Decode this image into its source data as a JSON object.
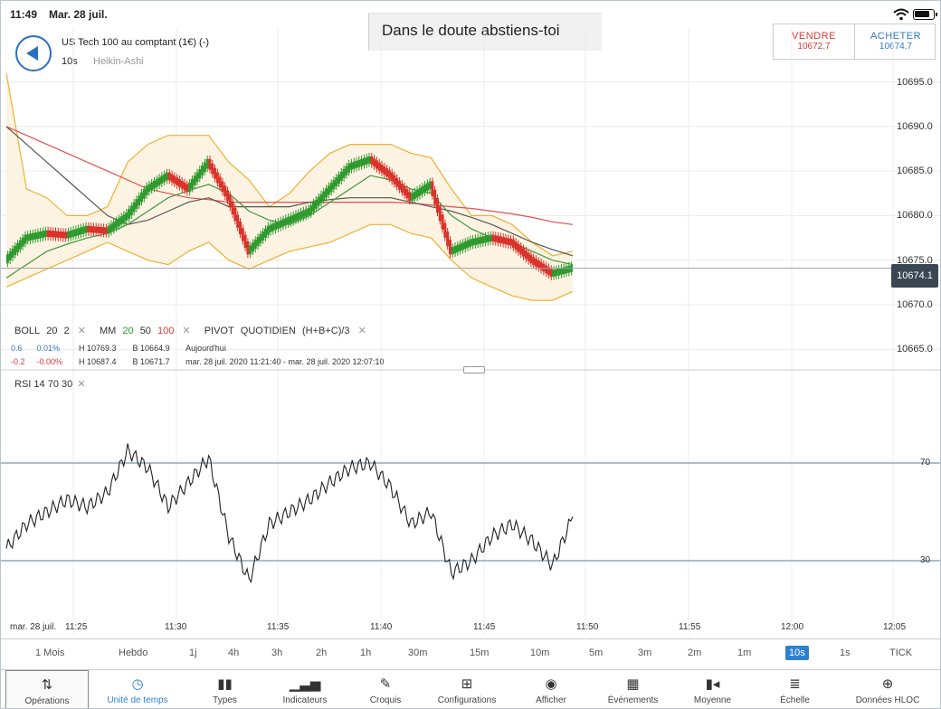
{
  "status": {
    "time": "11:49",
    "date": "Mar. 28 juil."
  },
  "header": {
    "instrument": "US Tech 100 au comptant (1€) (-)",
    "interval": "10s",
    "chart_type": "Heikin-Ashi",
    "tooltip": "Dans le doute abstiens-toi"
  },
  "trade": {
    "sell_label": "VENDRE",
    "sell_price": "10672.7",
    "buy_label": "ACHETER",
    "buy_price": "10674.7"
  },
  "colors": {
    "up": "#2e9a2e",
    "down": "#d9322a",
    "boll": "#f0b030",
    "ma20": "#3f9a3f",
    "ma50": "#555555",
    "ma100": "#e05050",
    "accent": "#2f80d1"
  },
  "indicators": {
    "boll": {
      "name": "BOLL",
      "p1": "20",
      "p2": "2"
    },
    "mm": {
      "name": "MM",
      "p1": "20",
      "p2": "50",
      "p3": "100"
    },
    "pivot": {
      "name": "PIVOT",
      "p1": "QUOTIDIEN",
      "p2": "(H+B+C)/3"
    },
    "rsi": {
      "name": "RSI",
      "p1": "14",
      "p2": "70",
      "p3": "30"
    },
    "close_glyph": "✕"
  },
  "stats": {
    "row1": {
      "change": "0.6",
      "pct": "0.01%",
      "high": "H 10769.3",
      "low": "B 10664.9",
      "period": "Aujourd'hui"
    },
    "row2": {
      "change": "-0.2",
      "pct": "-0.00%",
      "high": "H 10687.4",
      "low": "B 10671.7",
      "period": "mar. 28 juil. 2020 11:21:40 - mar. 28 juil. 2020 12:07:10"
    }
  },
  "current_price": "10674.1",
  "price_axis": [
    "10695.0",
    "10690.0",
    "10685.0",
    "10680.0",
    "10675.0",
    "10670.0",
    "10665.0"
  ],
  "rsi_axis": [
    "70",
    "30"
  ],
  "time_axis": [
    "mar. 28 juil.",
    "11:25",
    "11:30",
    "11:35",
    "11:40",
    "11:45",
    "11:50",
    "11:55",
    "12:00",
    "12:05"
  ],
  "timeframes": [
    "1 Mois",
    "Hebdo",
    "1j",
    "4h",
    "3h",
    "2h",
    "1h",
    "30m",
    "15m",
    "10m",
    "5m",
    "3m",
    "2m",
    "1m",
    "10s",
    "1s",
    "TICK"
  ],
  "active_timeframe": "10s",
  "toolbar": [
    {
      "label": "Opérations",
      "icon": "arrows-updown-icon"
    },
    {
      "label": "Unité de temps",
      "icon": "clock-icon"
    },
    {
      "label": "Types",
      "icon": "candles-icon"
    },
    {
      "label": "Indicateurs",
      "icon": "bar-chart-icon"
    },
    {
      "label": "Croquis",
      "icon": "pencil-icon"
    },
    {
      "label": "Configurations",
      "icon": "layout-icon"
    },
    {
      "label": "Afficher",
      "icon": "eye-icon"
    },
    {
      "label": "Événements",
      "icon": "calendar-icon"
    },
    {
      "label": "Moyenne",
      "icon": "moyenne-icon"
    },
    {
      "label": "Échelle",
      "icon": "scale-icon"
    },
    {
      "label": "Données HLOC",
      "icon": "crosshair-icon"
    }
  ],
  "chart_data": {
    "type": "line",
    "price_range": [
      10663,
      10698
    ],
    "rsi_range": [
      0,
      100
    ],
    "x": [
      "11:21",
      "11:22",
      "11:23",
      "11:24",
      "11:25",
      "11:26",
      "11:27",
      "11:28",
      "11:29",
      "11:30",
      "11:31",
      "11:32",
      "11:33",
      "11:34",
      "11:35",
      "11:36",
      "11:37",
      "11:38",
      "11:39",
      "11:40",
      "11:41",
      "11:42",
      "11:43",
      "11:44",
      "11:45",
      "11:46",
      "11:47",
      "11:48",
      "11:49"
    ],
    "series": [
      {
        "values": [
          10675.0,
          10677.5,
          10678.0,
          10677.8,
          10678.5,
          10678.3,
          10680.0,
          10683.0,
          10684.5,
          10683.0,
          10686.0,
          10682.0,
          10676.0,
          10678.5,
          10679.5,
          10680.5,
          10683.0,
          10685.5,
          10686.3,
          10684.5,
          10682.0,
          10683.5,
          10676.0,
          10677.0,
          10677.5,
          10677.0,
          10675.0,
          10673.5,
          10674.1
        ]
      },
      {
        "values": [
          10673.0,
          10674.5,
          10676.0,
          10676.8,
          10677.5,
          10678.0,
          10679.0,
          10680.5,
          10682.0,
          10682.8,
          10683.5,
          10682.5,
          10680.5,
          10679.5,
          10679.0,
          10680.0,
          10681.5,
          10683.0,
          10684.5,
          10684.0,
          10683.0,
          10682.5,
          10680.0,
          10678.5,
          10677.5,
          10677.0,
          10676.0,
          10675.0,
          10674.5
        ]
      },
      {
        "values": [
          10690.0,
          10688.0,
          10686.0,
          10684.0,
          10682.0,
          10680.0,
          10679.0,
          10679.5,
          10680.5,
          10681.5,
          10682.0,
          10681.0,
          10681.0,
          10681.0,
          10681.0,
          10681.5,
          10681.8,
          10682.0,
          10682.0,
          10682.0,
          10681.5,
          10681.0,
          10680.5,
          10679.8,
          10679.0,
          10678.0,
          10677.0,
          10676.2,
          10675.5
        ]
      },
      {
        "values": [
          10690.0,
          10689.0,
          10688.0,
          10687.0,
          10686.0,
          10685.0,
          10684.0,
          10683.0,
          10682.5,
          10682.0,
          10681.8,
          10681.5,
          10681.5,
          10681.5,
          10681.5,
          10681.5,
          10681.5,
          10681.5,
          10681.5,
          10681.5,
          10681.4,
          10681.2,
          10681.0,
          10680.8,
          10680.5,
          10680.2,
          10679.8,
          10679.3,
          10679.0
        ]
      },
      {
        "values": [
          10696.0,
          10683.0,
          10682.0,
          10680.0,
          10680.0,
          10681.0,
          10686.0,
          10688.0,
          10689.0,
          10689.0,
          10689.0,
          10686.0,
          10684.0,
          10681.0,
          10682.5,
          10685.0,
          10687.0,
          10688.0,
          10688.0,
          10688.0,
          10687.0,
          10686.5,
          10683.0,
          10680.0,
          10680.0,
          10679.0,
          10677.0,
          10675.5,
          10676.0
        ]
      },
      {
        "values": [
          10672.0,
          10673.0,
          10674.0,
          10675.0,
          10676.0,
          10677.0,
          10676.0,
          10675.0,
          10674.5,
          10676.0,
          10677.0,
          10675.0,
          10674.0,
          10675.0,
          10676.0,
          10676.5,
          10677.0,
          10678.0,
          10679.0,
          10679.0,
          10678.0,
          10677.5,
          10675.0,
          10673.0,
          10672.0,
          10671.0,
          10670.5,
          10670.5,
          10671.5
        ]
      },
      {
        "values": [
          35,
          45,
          50,
          55,
          52,
          58,
          75,
          68,
          52,
          62,
          72,
          40,
          22,
          45,
          50,
          55,
          62,
          68,
          70,
          60,
          45,
          50,
          25,
          30,
          40,
          45,
          38,
          28,
          48
        ]
      }
    ]
  }
}
